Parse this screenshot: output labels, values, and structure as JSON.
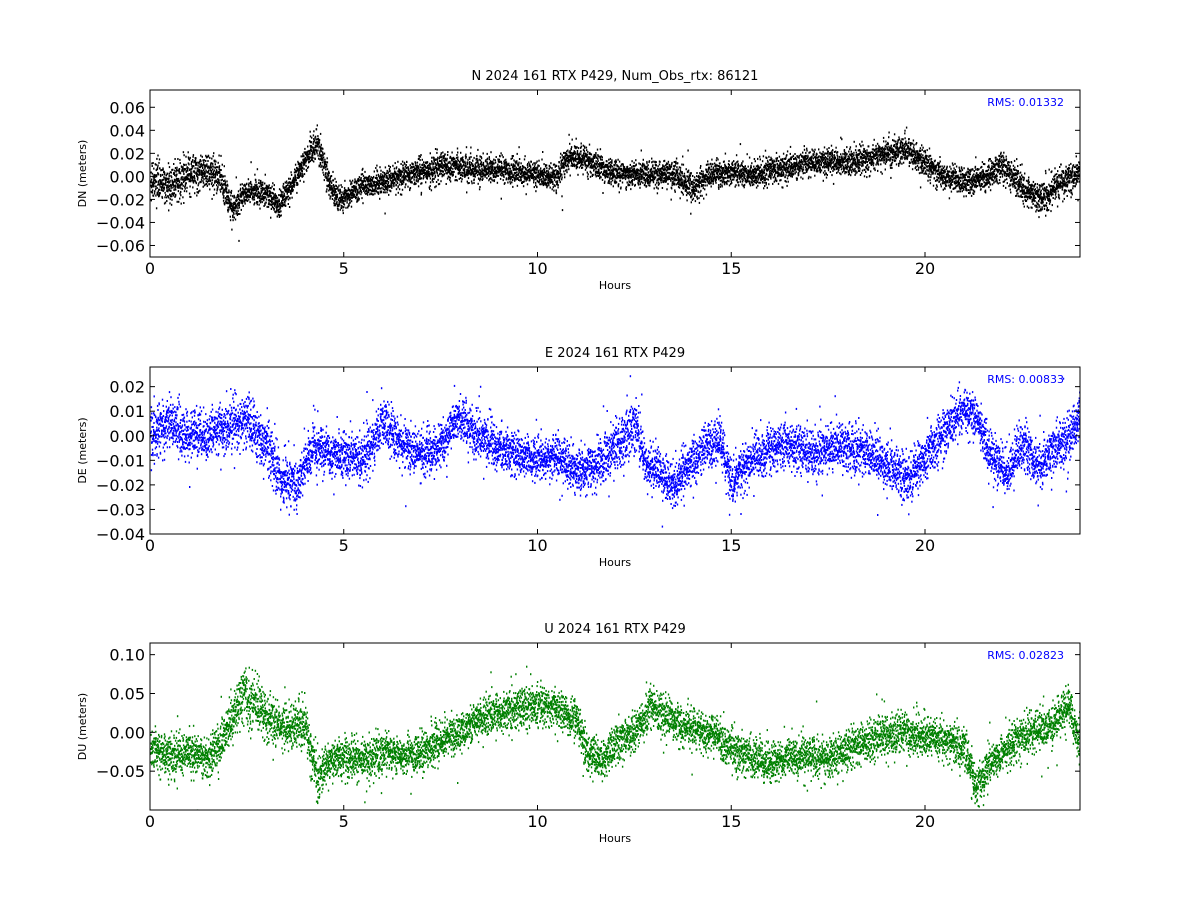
{
  "chart_data": [
    {
      "type": "scatter",
      "title": "N 2024 161 RTX  P429, Num_Obs_rtx: 86121",
      "xlabel": "Hours",
      "ylabel": "DN (meters)",
      "xlim": [
        0,
        24
      ],
      "ylim": [
        -0.07,
        0.075
      ],
      "xticks": [
        0,
        5,
        10,
        15,
        20
      ],
      "xtick_labels": [
        "0",
        "5",
        "10",
        "15",
        "20"
      ],
      "yticks": [
        -0.06,
        -0.04,
        -0.02,
        0.0,
        0.02,
        0.04,
        0.06
      ],
      "ytick_labels": [
        "−0.06",
        "−0.04",
        "−0.02",
        "0.00",
        "0.02",
        "0.04",
        "0.06"
      ],
      "annotation": "RMS:  0.01332",
      "color": "#000000",
      "grid": false,
      "series": [
        {
          "x": [
            0,
            0.5,
            1,
            1.5,
            1.8,
            2.1,
            2.5,
            3,
            3.3,
            3.7,
            4,
            4.3,
            4.5,
            4.8,
            5,
            5.5,
            6,
            6.5,
            7,
            7.5,
            8,
            8.5,
            9,
            9.5,
            10,
            10.5,
            10.8,
            11.2,
            11.8,
            12.5,
            13,
            13.5,
            14,
            14.5,
            15,
            15.5,
            16,
            16.5,
            17,
            17.5,
            18,
            18.5,
            19,
            19.5,
            20,
            20.5,
            21,
            21.5,
            22,
            22.5,
            23,
            23.5,
            24
          ],
          "y": [
            -0.005,
            -0.008,
            0.002,
            0.005,
            0.0,
            -0.028,
            -0.012,
            -0.015,
            -0.025,
            -0.005,
            0.015,
            0.03,
            0.005,
            -0.02,
            -0.018,
            -0.008,
            -0.005,
            0.0,
            0.005,
            0.008,
            0.008,
            0.006,
            0.006,
            0.003,
            0.002,
            -0.001,
            0.018,
            0.015,
            0.005,
            0.0,
            0.002,
            0.002,
            -0.01,
            0.003,
            0.003,
            0.0,
            0.005,
            0.008,
            0.012,
            0.013,
            0.012,
            0.015,
            0.02,
            0.025,
            0.01,
            0.0,
            -0.003,
            -0.002,
            0.01,
            -0.01,
            -0.02,
            -0.005,
            0.002
          ],
          "spread": [
            0.014,
            0.016,
            0.016,
            0.016,
            0.016,
            0.012,
            0.011,
            0.011,
            0.011,
            0.011,
            0.011,
            0.016,
            0.012,
            0.011,
            0.011,
            0.011,
            0.011,
            0.011,
            0.012,
            0.012,
            0.012,
            0.011,
            0.011,
            0.011,
            0.011,
            0.011,
            0.012,
            0.012,
            0.011,
            0.011,
            0.011,
            0.011,
            0.012,
            0.011,
            0.011,
            0.011,
            0.011,
            0.011,
            0.011,
            0.011,
            0.011,
            0.011,
            0.012,
            0.012,
            0.011,
            0.011,
            0.011,
            0.012,
            0.013,
            0.013,
            0.012,
            0.013,
            0.012
          ]
        }
      ]
    },
    {
      "type": "scatter",
      "title": "E 2024 161 RTX  P429",
      "xlabel": "Hours",
      "ylabel": "DE (meters)",
      "xlim": [
        0,
        24
      ],
      "ylim": [
        -0.04,
        0.028
      ],
      "xticks": [
        0,
        5,
        10,
        15,
        20
      ],
      "xtick_labels": [
        "0",
        "5",
        "10",
        "15",
        "20"
      ],
      "yticks": [
        -0.04,
        -0.03,
        -0.02,
        -0.01,
        0.0,
        0.01,
        0.02
      ],
      "ytick_labels": [
        "−0.04",
        "−0.03",
        "−0.02",
        "−0.01",
        "0.00",
        "0.01",
        "0.02"
      ],
      "annotation": "RMS:  0.00833",
      "color": "#0000ff",
      "grid": false,
      "series": [
        {
          "x": [
            0,
            0.5,
            1,
            1.5,
            2,
            2.5,
            3,
            3.4,
            3.8,
            4.2,
            4.6,
            5,
            5.5,
            6,
            6.5,
            7,
            7.5,
            7.9,
            8.3,
            8.7,
            9,
            9.5,
            10,
            10.5,
            11,
            11.5,
            12,
            12.5,
            12.8,
            13.1,
            13.5,
            13.9,
            14.3,
            14.7,
            15,
            15.3,
            15.7,
            16.2,
            16.7,
            17.2,
            17.7,
            18.2,
            18.7,
            19.2,
            19.6,
            20,
            20.5,
            21,
            21.3,
            21.7,
            22.1,
            22.5,
            22.9,
            23.3,
            23.7,
            24
          ],
          "y": [
            0.002,
            0.005,
            0.0,
            0.0,
            0.004,
            0.006,
            -0.005,
            -0.018,
            -0.02,
            -0.004,
            -0.008,
            -0.008,
            -0.01,
            0.005,
            -0.003,
            -0.008,
            -0.005,
            0.008,
            0.002,
            -0.003,
            -0.005,
            -0.008,
            -0.01,
            -0.008,
            -0.015,
            -0.012,
            -0.005,
            0.005,
            -0.012,
            -0.015,
            -0.02,
            -0.012,
            -0.005,
            -0.002,
            -0.02,
            -0.012,
            -0.008,
            -0.003,
            -0.005,
            -0.008,
            -0.003,
            -0.005,
            -0.008,
            -0.015,
            -0.018,
            -0.008,
            0.002,
            0.012,
            0.008,
            -0.008,
            -0.015,
            -0.003,
            -0.012,
            -0.005,
            0.0,
            0.008
          ],
          "spread": [
            0.011,
            0.011,
            0.01,
            0.009,
            0.01,
            0.011,
            0.011,
            0.01,
            0.009,
            0.009,
            0.009,
            0.009,
            0.009,
            0.01,
            0.009,
            0.009,
            0.009,
            0.009,
            0.009,
            0.009,
            0.009,
            0.009,
            0.009,
            0.009,
            0.009,
            0.009,
            0.009,
            0.01,
            0.009,
            0.009,
            0.009,
            0.009,
            0.009,
            0.009,
            0.009,
            0.009,
            0.009,
            0.009,
            0.009,
            0.009,
            0.009,
            0.009,
            0.009,
            0.01,
            0.01,
            0.009,
            0.009,
            0.009,
            0.009,
            0.009,
            0.009,
            0.009,
            0.009,
            0.009,
            0.009,
            0.01
          ]
        }
      ]
    },
    {
      "type": "scatter",
      "title": "U 2024 161 RTX  P429",
      "xlabel": "Hours",
      "ylabel": "DU (meters)",
      "xlim": [
        0,
        24
      ],
      "ylim": [
        -0.1,
        0.115
      ],
      "xticks": [
        0,
        5,
        10,
        15,
        20
      ],
      "xtick_labels": [
        "0",
        "5",
        "10",
        "15",
        "20"
      ],
      "yticks": [
        -0.05,
        0.0,
        0.05,
        0.1
      ],
      "ytick_labels": [
        "−0.05",
        "0.00",
        "0.05",
        "0.10"
      ],
      "annotation": "RMS:  0.02823",
      "color": "#008000",
      "grid": false,
      "series": [
        {
          "x": [
            0,
            0.5,
            1,
            1.5,
            1.8,
            2.1,
            2.4,
            2.8,
            3.2,
            3.6,
            4,
            4.3,
            4.6,
            5,
            5.5,
            6,
            6.5,
            7,
            7.5,
            8,
            8.5,
            9,
            9.5,
            10,
            10.5,
            11,
            11.3,
            11.7,
            12.1,
            12.5,
            12.9,
            13.3,
            13.7,
            14.1,
            14.5,
            15,
            15.5,
            16,
            16.5,
            17,
            17.5,
            18,
            18.5,
            19,
            19.5,
            20,
            20.5,
            21,
            21.3,
            21.7,
            22.2,
            22.7,
            23.2,
            23.7,
            24
          ],
          "y": [
            -0.02,
            -0.03,
            -0.025,
            -0.035,
            -0.015,
            0.02,
            0.05,
            0.03,
            0.01,
            0.005,
            0.01,
            -0.06,
            -0.04,
            -0.03,
            -0.035,
            -0.025,
            -0.03,
            -0.025,
            -0.01,
            0.0,
            0.02,
            0.025,
            0.03,
            0.035,
            0.03,
            0.015,
            -0.03,
            -0.035,
            -0.01,
            0.0,
            0.035,
            0.02,
            0.01,
            0.005,
            0.0,
            -0.02,
            -0.03,
            -0.04,
            -0.03,
            -0.03,
            -0.035,
            -0.02,
            -0.01,
            -0.005,
            0.0,
            -0.005,
            -0.01,
            -0.02,
            -0.07,
            -0.04,
            -0.015,
            0.0,
            0.005,
            0.035,
            -0.02
          ],
          "spread": [
            0.025,
            0.025,
            0.025,
            0.025,
            0.025,
            0.03,
            0.035,
            0.035,
            0.03,
            0.03,
            0.03,
            0.03,
            0.025,
            0.025,
            0.025,
            0.025,
            0.025,
            0.025,
            0.025,
            0.025,
            0.025,
            0.025,
            0.025,
            0.025,
            0.025,
            0.025,
            0.025,
            0.025,
            0.025,
            0.025,
            0.025,
            0.025,
            0.025,
            0.025,
            0.025,
            0.025,
            0.025,
            0.025,
            0.025,
            0.025,
            0.025,
            0.025,
            0.025,
            0.025,
            0.025,
            0.025,
            0.025,
            0.025,
            0.025,
            0.025,
            0.025,
            0.025,
            0.025,
            0.025,
            0.025
          ]
        }
      ]
    }
  ]
}
